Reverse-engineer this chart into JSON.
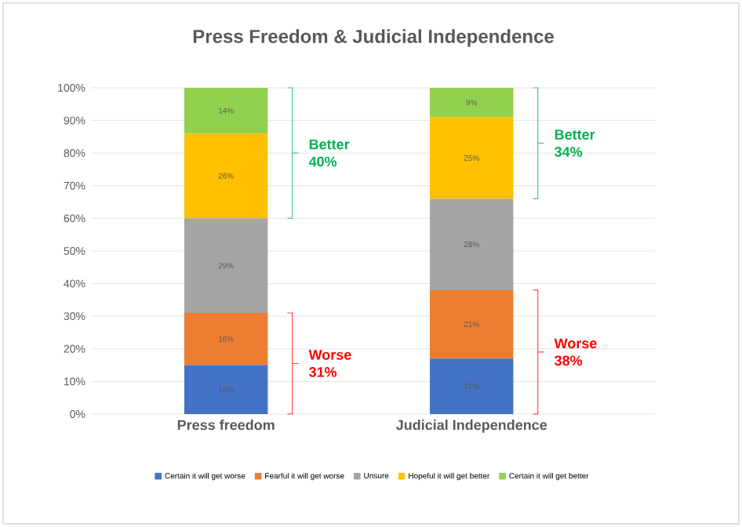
{
  "chart_data": {
    "type": "bar",
    "stacked": true,
    "title": "Press Freedom & Judicial Independence",
    "categories": [
      "Press freedom",
      "Judicial Independence"
    ],
    "series": [
      {
        "name": "Certain it will get worse",
        "color": "#4472c4",
        "values": [
          15,
          17
        ],
        "value_labels": [
          "15%",
          "17%"
        ]
      },
      {
        "name": "Fearful it will get worse",
        "color": "#ed7d31",
        "values": [
          16,
          21
        ],
        "value_labels": [
          "16%",
          "21%"
        ]
      },
      {
        "name": "Unsure",
        "color": "#a5a5a5",
        "values": [
          29,
          28
        ],
        "value_labels": [
          "29%",
          "28%"
        ]
      },
      {
        "name": "Hopeful it will get better",
        "color": "#ffc000",
        "values": [
          26,
          25
        ],
        "value_labels": [
          "26%",
          "25%"
        ]
      },
      {
        "name": "Certain it will get better",
        "color": "#92d050",
        "values": [
          14,
          9
        ],
        "value_labels": [
          "14%",
          "9%"
        ]
      }
    ],
    "ylim": [
      0,
      100
    ],
    "yticks": [
      {
        "value": 0,
        "label": "0%"
      },
      {
        "value": 10,
        "label": "10%"
      },
      {
        "value": 20,
        "label": "20%"
      },
      {
        "value": 30,
        "label": "30%"
      },
      {
        "value": 40,
        "label": "40%"
      },
      {
        "value": 50,
        "label": "50%"
      },
      {
        "value": 60,
        "label": "60%"
      },
      {
        "value": 70,
        "label": "70%"
      },
      {
        "value": 80,
        "label": "80%"
      },
      {
        "value": 90,
        "label": "90%"
      },
      {
        "value": 100,
        "label": "100%"
      }
    ],
    "grid": "y",
    "legend": "bottom",
    "annotations": [
      "Better 40%",
      "Worse 31%",
      "Better 34%",
      "Worse 38%"
    ]
  }
}
